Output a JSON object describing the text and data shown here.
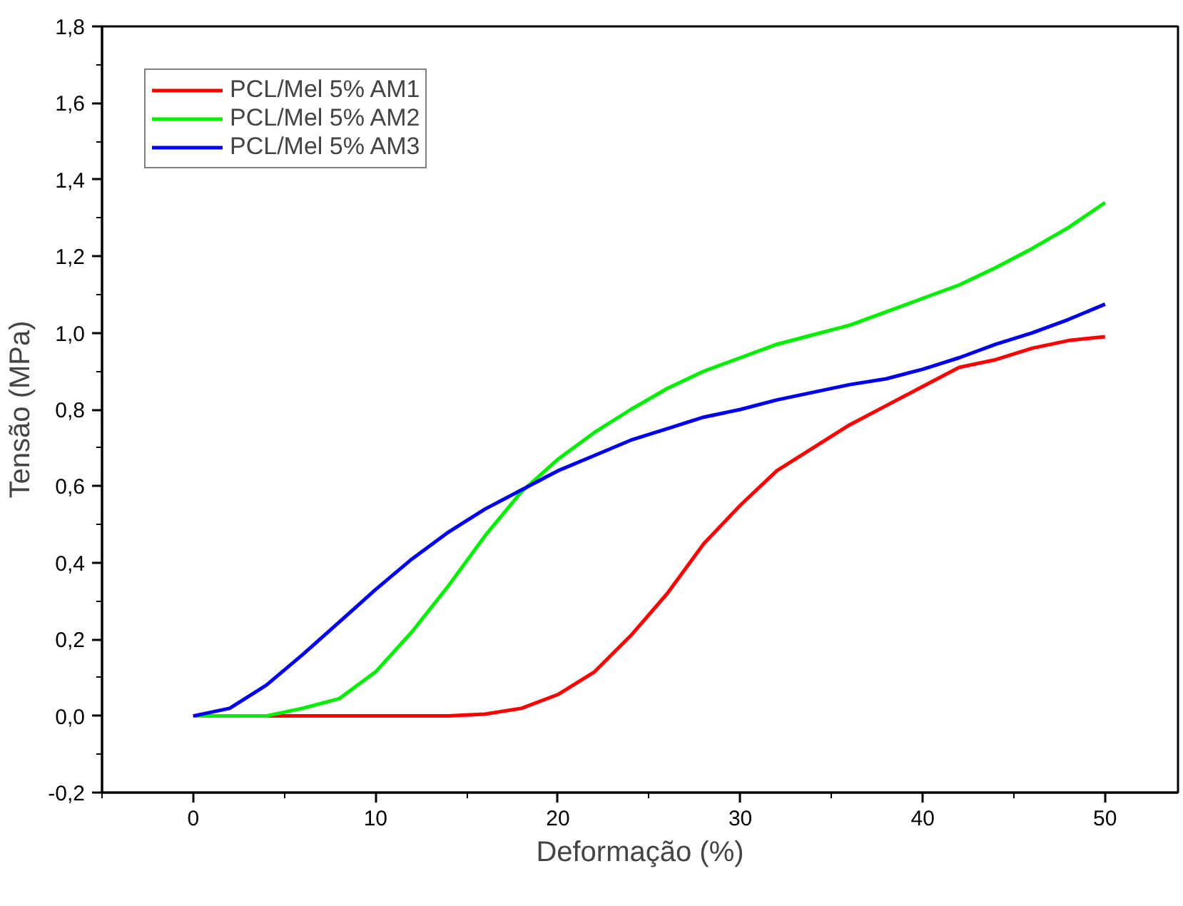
{
  "chart_data": {
    "type": "line",
    "xlabel": "Deformação (%)",
    "ylabel": "Tensão (MPa)",
    "xlim": [
      -5,
      54
    ],
    "xticks": [
      0,
      10,
      20,
      30,
      40,
      50
    ],
    "ylim": [
      -0.2,
      1.8
    ],
    "yticks": [
      {
        "value": -0.2,
        "label": "-0,2"
      },
      {
        "value": 0,
        "label": "0,0"
      },
      {
        "value": 0.2,
        "label": "0,2"
      },
      {
        "value": 0.4,
        "label": "0,4"
      },
      {
        "value": 0.6,
        "label": "0,6"
      },
      {
        "value": 0.8,
        "label": "0,8"
      },
      {
        "value": 1.0,
        "label": "1,0"
      },
      {
        "value": 1.2,
        "label": "1,2"
      },
      {
        "value": 1.4,
        "label": "1,4"
      },
      {
        "value": 1.6,
        "label": "1,6"
      },
      {
        "value": 1.8,
        "label": "1,8"
      }
    ],
    "grid": false,
    "legend": "top left",
    "line_style": "solid",
    "x": [
      0,
      2,
      4,
      6,
      8,
      10,
      12,
      14,
      16,
      18,
      20,
      22,
      24,
      26,
      28,
      30,
      32,
      34,
      36,
      38,
      40,
      42,
      44,
      46,
      48,
      50
    ],
    "series": [
      {
        "name": "PCL/Mel 5% AM1",
        "color": "#ff0000",
        "values": [
          0,
          0,
          0,
          0,
          0,
          0,
          0,
          0,
          0.005,
          0.02,
          0.056,
          0.115,
          0.21,
          0.32,
          0.45,
          0.55,
          0.64,
          0.7,
          0.76,
          0.81,
          0.86,
          0.91,
          0.93,
          0.96,
          0.98,
          0.99
        ]
      },
      {
        "name": "PCL/Mel 5% AM2",
        "color": "#00ee00",
        "values": [
          0,
          0,
          0,
          0.02,
          0.045,
          0.115,
          0.22,
          0.34,
          0.47,
          0.585,
          0.67,
          0.74,
          0.8,
          0.855,
          0.9,
          0.935,
          0.97,
          0.995,
          1.02,
          1.055,
          1.09,
          1.125,
          1.17,
          1.22,
          1.275,
          1.34
        ]
      },
      {
        "name": "PCL/Mel 5% AM3",
        "color": "#0000ee",
        "values": [
          0,
          0.02,
          0.08,
          0.16,
          0.245,
          0.33,
          0.41,
          0.48,
          0.54,
          0.59,
          0.64,
          0.68,
          0.72,
          0.75,
          0.78,
          0.8,
          0.825,
          0.845,
          0.865,
          0.88,
          0.905,
          0.935,
          0.97,
          1.0,
          1.035,
          1.075
        ]
      }
    ]
  }
}
